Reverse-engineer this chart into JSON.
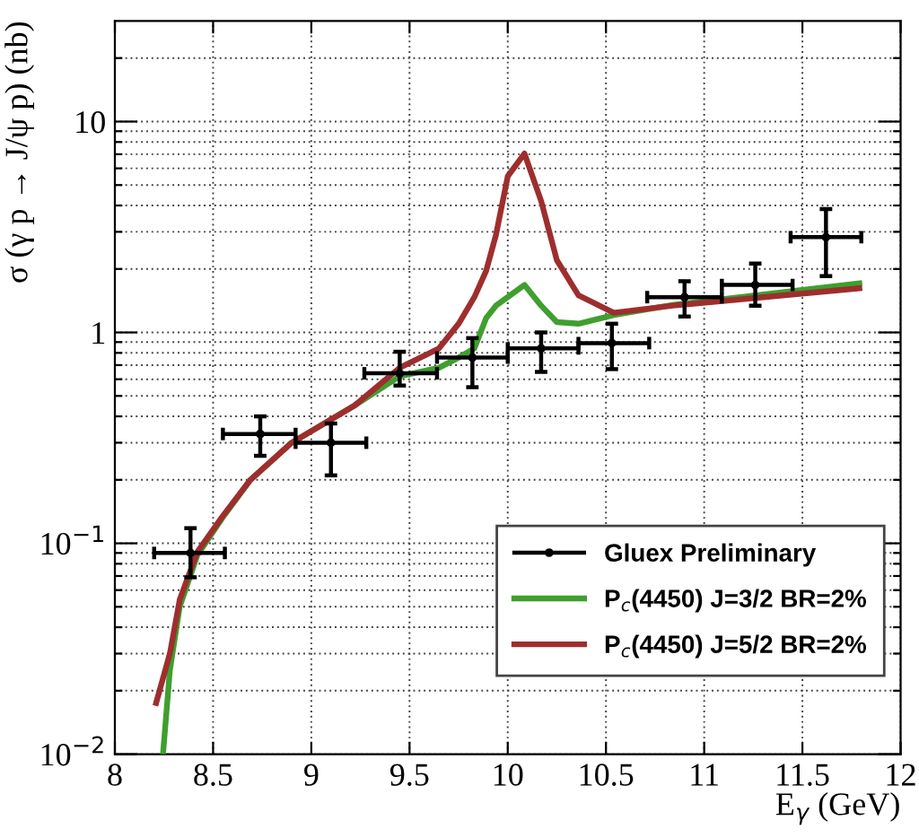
{
  "chart_data": {
    "type": "line",
    "xlabel": "E$_{γ}$ (GeV)",
    "ylabel": "σ (γ p → J/ψ p) (nb)",
    "log": "y",
    "grid": true,
    "legend": "bottom right",
    "xlim": [
      8,
      12
    ],
    "ylim": [
      0.01,
      30
    ],
    "xticks": [
      8,
      8.5,
      9,
      9.5,
      10,
      10.5,
      11,
      11.5,
      12
    ],
    "yticks": [
      {
        "value": 0.01,
        "label": "10$^{−2}$"
      },
      {
        "value": 0.02,
        "label": null
      },
      {
        "value": 0.03,
        "label": null
      },
      {
        "value": 0.04,
        "label": null
      },
      {
        "value": 0.05,
        "label": null
      },
      {
        "value": 0.06,
        "label": null
      },
      {
        "value": 0.07,
        "label": null
      },
      {
        "value": 0.08,
        "label": null
      },
      {
        "value": 0.09,
        "label": null
      },
      {
        "value": 0.1,
        "label": "10$^{−1}$"
      },
      {
        "value": 0.2,
        "label": null
      },
      {
        "value": 0.3,
        "label": null
      },
      {
        "value": 0.4,
        "label": null
      },
      {
        "value": 0.5,
        "label": null
      },
      {
        "value": 0.6,
        "label": null
      },
      {
        "value": 0.7,
        "label": null
      },
      {
        "value": 0.8,
        "label": null
      },
      {
        "value": 0.9,
        "label": null
      },
      1,
      {
        "value": 2,
        "label": null
      },
      {
        "value": 3,
        "label": null
      },
      {
        "value": 4,
        "label": null
      },
      {
        "value": 5,
        "label": null
      },
      {
        "value": 6,
        "label": null
      },
      {
        "value": 7,
        "label": null
      },
      {
        "value": 8,
        "label": null
      },
      {
        "value": 9,
        "label": null
      },
      10,
      {
        "value": 20,
        "label": null
      }
    ],
    "series": [
      {
        "name": "Gluex Preliminary",
        "type": "scatter",
        "color": "#000000",
        "x": [
          8.385,
          8.74,
          9.1,
          9.45,
          9.82,
          10.17,
          10.53,
          10.9,
          11.26,
          11.62
        ],
        "values": [
          0.09,
          0.33,
          0.3,
          0.64,
          0.76,
          0.84,
          0.89,
          1.47,
          1.68,
          2.83
        ],
        "errors": [
          [
            0.069,
            0.118
          ],
          [
            0.26,
            0.4
          ],
          [
            0.21,
            0.37
          ],
          [
            0.56,
            0.81
          ],
          [
            0.55,
            0.94
          ],
          [
            0.65,
            1.0
          ],
          [
            0.67,
            1.1
          ],
          [
            1.19,
            1.75
          ],
          [
            1.34,
            2.12
          ],
          [
            1.85,
            3.85
          ]
        ],
        "xerrors": [
          [
            8.2,
            8.56
          ],
          [
            8.55,
            8.92
          ],
          [
            8.92,
            9.28
          ],
          [
            9.27,
            9.64
          ],
          [
            9.64,
            10.0
          ],
          [
            10.0,
            10.36
          ],
          [
            10.36,
            10.72
          ],
          [
            10.71,
            11.09
          ],
          [
            11.09,
            11.45
          ],
          [
            11.44,
            11.8
          ]
        ]
      },
      {
        "name": "P$_{c}$(4450) J=3/2 BR=2%",
        "color": "#3f9f2f",
        "x": [
          8.245,
          8.28,
          8.33,
          8.42,
          8.55,
          8.69,
          8.9,
          9.22,
          9.45,
          9.65,
          9.75,
          9.83,
          9.89,
          9.94,
          10.085,
          10.17,
          10.25,
          10.36,
          10.54,
          10.84,
          11.79
        ],
        "values": [
          0.01,
          0.025,
          0.05,
          0.088,
          0.133,
          0.2,
          0.3,
          0.45,
          0.62,
          0.68,
          0.76,
          0.84,
          1.17,
          1.34,
          1.68,
          1.34,
          1.12,
          1.1,
          1.21,
          1.35,
          1.71
        ]
      },
      {
        "name": "P$_{c}$(4450) J=5/2 BR=2%",
        "color": "#9e2e2e",
        "x": [
          8.21,
          8.28,
          8.33,
          8.42,
          8.55,
          8.69,
          8.9,
          9.22,
          9.45,
          9.65,
          9.75,
          9.83,
          9.89,
          9.94,
          10.0,
          10.085,
          10.17,
          10.25,
          10.36,
          10.54,
          10.84,
          11.79
        ],
        "values": [
          0.0175,
          0.03,
          0.054,
          0.091,
          0.135,
          0.2,
          0.3,
          0.45,
          0.68,
          0.84,
          1.1,
          1.47,
          1.96,
          2.9,
          5.5,
          7.05,
          4.2,
          2.2,
          1.5,
          1.24,
          1.34,
          1.62
        ]
      }
    ]
  }
}
